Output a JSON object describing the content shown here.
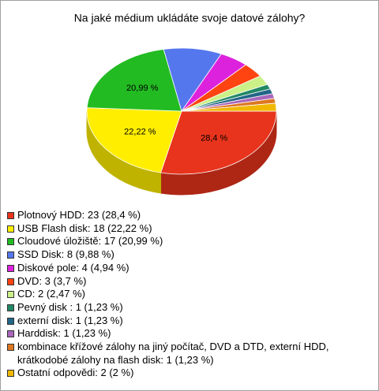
{
  "chart_data": {
    "type": "pie3d",
    "title": "Na jaké médium ukládáte svoje datové zálohy?",
    "categories": [
      "Plotnový HDD: 23 (28,4 %)",
      "USB Flash disk: 18 (22,22 %)",
      "Cloudové úložiště: 17 (20,99 %)",
      "SSD Disk: 8 (9,88 %)",
      "Diskové pole: 4 (4,94 %)",
      "DVD: 3 (3,7 %)",
      "CD: 2 (2,47 %)",
      "Pevný disk : 1 (1,23 %)",
      "externí disk: 1 (1,23 %)",
      "Harddisk: 1 (1,23 %)",
      "kombinace křížové zálohy na jiný počítač, DVD a DTD, externí HDD, krátkodobé zálohy na flash disk: 1 (1,23 %)",
      "Ostatní odpovědi: 2 (2 %)"
    ],
    "counts": [
      23,
      18,
      17,
      8,
      4,
      3,
      2,
      1,
      1,
      1,
      1,
      2
    ],
    "values": [
      28.4,
      22.22,
      20.99,
      9.88,
      4.94,
      3.7,
      2.47,
      1.23,
      1.23,
      1.23,
      1.23,
      2
    ],
    "value_labels": [
      "28,4 %",
      "22,22 %",
      "20,99 %",
      null,
      null,
      null,
      null,
      null,
      null,
      null,
      null,
      null
    ],
    "colors": [
      "#e8341c",
      "#ffee00",
      "#22bb22",
      "#5577ee",
      "#dd22dd",
      "#ff4411",
      "#ccf088",
      "#228866",
      "#226688",
      "#aa66bb",
      "#dd7722",
      "#f0b800"
    ]
  }
}
